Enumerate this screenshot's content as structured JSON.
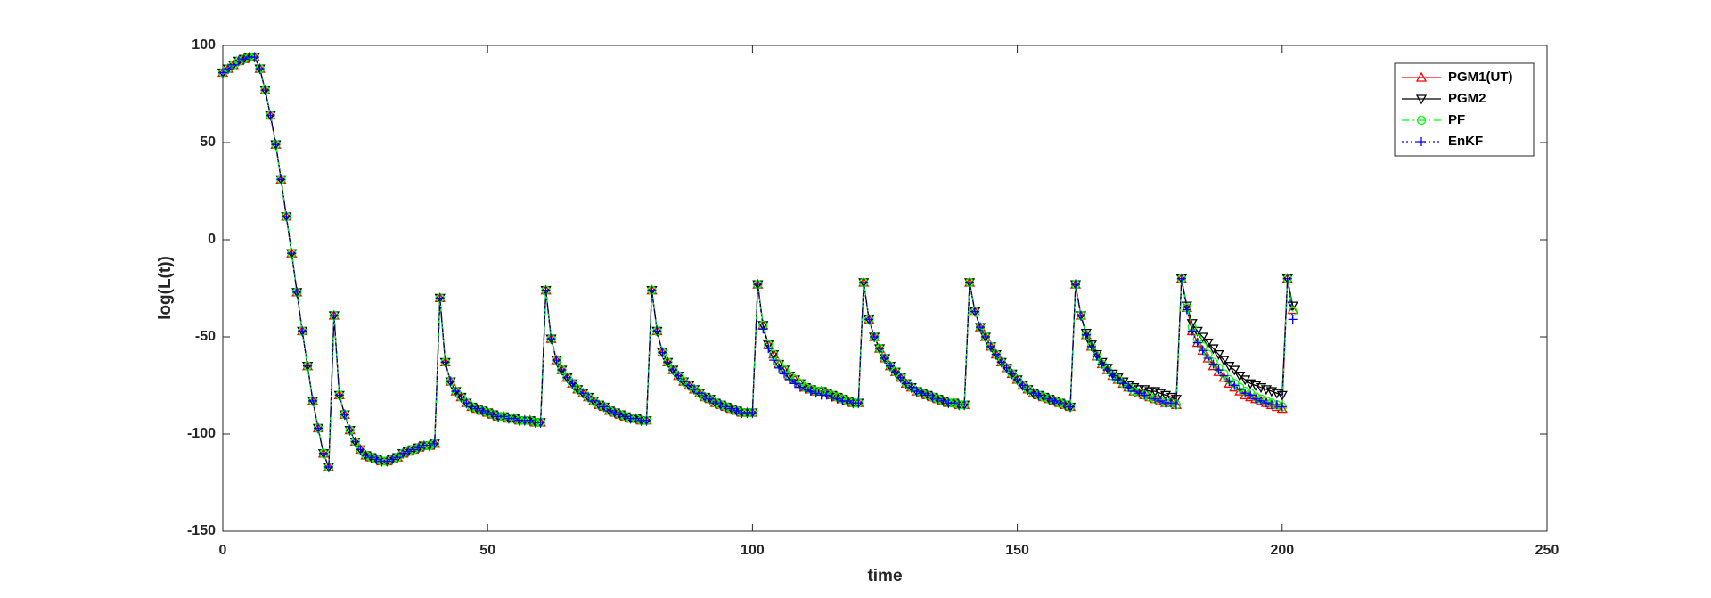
{
  "chart_data": {
    "type": "line",
    "xlabel": "time",
    "ylabel": "log(L(t))",
    "xlim": [
      0,
      250
    ],
    "ylim": [
      -150,
      100
    ],
    "xticks": [
      0,
      50,
      100,
      150,
      200,
      250
    ],
    "yticks": [
      -150,
      -100,
      -50,
      0,
      50,
      100
    ],
    "legend": "northeast",
    "x": [
      0,
      1,
      2,
      3,
      4,
      5,
      6,
      7,
      8,
      9,
      10,
      11,
      12,
      13,
      14,
      15,
      16,
      17,
      18,
      19,
      20,
      21,
      22,
      23,
      24,
      25,
      26,
      27,
      28,
      29,
      30,
      31,
      32,
      33,
      34,
      35,
      36,
      37,
      38,
      39,
      40,
      41,
      42,
      43,
      44,
      45,
      46,
      47,
      48,
      49,
      50,
      51,
      52,
      53,
      54,
      55,
      56,
      57,
      58,
      59,
      60,
      61,
      62,
      63,
      64,
      65,
      66,
      67,
      68,
      69,
      70,
      71,
      72,
      73,
      74,
      75,
      76,
      77,
      78,
      79,
      80,
      81,
      82,
      83,
      84,
      85,
      86,
      87,
      88,
      89,
      90,
      91,
      92,
      93,
      94,
      95,
      96,
      97,
      98,
      99,
      100,
      101,
      102,
      103,
      104,
      105,
      106,
      107,
      108,
      109,
      110,
      111,
      112,
      113,
      114,
      115,
      116,
      117,
      118,
      119,
      120,
      121,
      122,
      123,
      124,
      125,
      126,
      127,
      128,
      129,
      130,
      131,
      132,
      133,
      134,
      135,
      136,
      137,
      138,
      139,
      140,
      141,
      142,
      143,
      144,
      145,
      146,
      147,
      148,
      149,
      150,
      151,
      152,
      153,
      154,
      155,
      156,
      157,
      158,
      159,
      160,
      161,
      162,
      163,
      164,
      165,
      166,
      167,
      168,
      169,
      170,
      171,
      172,
      173,
      174,
      175,
      176,
      177,
      178,
      179,
      180,
      181,
      182,
      183,
      184,
      185,
      186,
      187,
      188,
      189,
      190,
      191,
      192,
      193,
      194,
      195,
      196,
      197,
      198,
      199,
      200,
      201,
      202
    ],
    "series": [
      {
        "name": "PGM1(UT)",
        "color": "#ff0000",
        "line": "solid",
        "marker": "triangle-up",
        "values": [
          86,
          88,
          90,
          92,
          93,
          94,
          94,
          88,
          77,
          64,
          49,
          31,
          12,
          -7,
          -27,
          -47,
          -65,
          -83,
          -97,
          -110,
          -117,
          -39,
          -80,
          -90,
          -98,
          -104,
          -108,
          -111,
          -112,
          -113,
          -114,
          -114,
          -113,
          -112,
          -110,
          -109,
          -108,
          -107,
          -106,
          -106,
          -105,
          -30,
          -63,
          -73,
          -78,
          -81,
          -84,
          -86,
          -87,
          -88,
          -89,
          -90,
          -91,
          -91,
          -92,
          -92,
          -93,
          -93,
          -93,
          -94,
          -94,
          -26,
          -51,
          -62,
          -67,
          -71,
          -74,
          -77,
          -79,
          -81,
          -83,
          -85,
          -86,
          -88,
          -89,
          -90,
          -91,
          -92,
          -92,
          -93,
          -93,
          -26,
          -47,
          -58,
          -63,
          -67,
          -70,
          -73,
          -75,
          -77,
          -79,
          -81,
          -82,
          -84,
          -85,
          -86,
          -87,
          -88,
          -89,
          -89,
          -89,
          -23,
          -44,
          -54,
          -59,
          -64,
          -67,
          -70,
          -72,
          -74,
          -76,
          -77,
          -78,
          -78,
          -79,
          -80,
          -81,
          -82,
          -83,
          -84,
          -84,
          -22,
          -41,
          -50,
          -56,
          -61,
          -65,
          -68,
          -71,
          -74,
          -76,
          -78,
          -79,
          -80,
          -81,
          -82,
          -83,
          -84,
          -84,
          -85,
          -85,
          -22,
          -37,
          -45,
          -50,
          -55,
          -59,
          -63,
          -66,
          -69,
          -72,
          -75,
          -77,
          -79,
          -80,
          -81,
          -82,
          -83,
          -84,
          -85,
          -86,
          -23,
          -39,
          -49,
          -55,
          -60,
          -64,
          -67,
          -70,
          -72,
          -74,
          -76,
          -78,
          -79,
          -80,
          -81,
          -82,
          -83,
          -84,
          -84,
          -85,
          -20,
          -35,
          -47,
          -53,
          -57,
          -61,
          -65,
          -68,
          -71,
          -74,
          -76,
          -78,
          -80,
          -81,
          -82,
          -83,
          -84,
          -85,
          -86,
          -87,
          -20,
          -36
        ]
      },
      {
        "name": "PGM2",
        "color": "#000000",
        "line": "solid",
        "marker": "triangle-down",
        "values": [
          86,
          88,
          90,
          92,
          93,
          94,
          94,
          88,
          77,
          64,
          49,
          31,
          12,
          -7,
          -27,
          -47,
          -65,
          -83,
          -97,
          -110,
          -117,
          -39,
          -80,
          -90,
          -98,
          -104,
          -108,
          -111,
          -112,
          -113,
          -114,
          -114,
          -113,
          -112,
          -110,
          -109,
          -108,
          -107,
          -106,
          -106,
          -105,
          -30,
          -63,
          -73,
          -78,
          -81,
          -84,
          -86,
          -87,
          -88,
          -89,
          -90,
          -91,
          -91,
          -92,
          -92,
          -93,
          -93,
          -93,
          -94,
          -94,
          -26,
          -51,
          -62,
          -67,
          -71,
          -74,
          -77,
          -79,
          -81,
          -83,
          -85,
          -86,
          -88,
          -89,
          -90,
          -91,
          -92,
          -92,
          -93,
          -93,
          -26,
          -47,
          -58,
          -63,
          -67,
          -70,
          -73,
          -75,
          -77,
          -79,
          -81,
          -82,
          -84,
          -85,
          -86,
          -87,
          -88,
          -89,
          -89,
          -89,
          -23,
          -44,
          -54,
          -59,
          -64,
          -67,
          -70,
          -72,
          -74,
          -76,
          -77,
          -78,
          -78,
          -79,
          -80,
          -81,
          -82,
          -83,
          -84,
          -84,
          -22,
          -41,
          -50,
          -56,
          -61,
          -65,
          -68,
          -71,
          -74,
          -76,
          -78,
          -79,
          -80,
          -81,
          -82,
          -83,
          -84,
          -84,
          -85,
          -85,
          -22,
          -37,
          -45,
          -50,
          -55,
          -59,
          -63,
          -66,
          -69,
          -72,
          -75,
          -77,
          -79,
          -80,
          -81,
          -82,
          -83,
          -84,
          -85,
          -86,
          -23,
          -39,
          -48,
          -54,
          -59,
          -63,
          -66,
          -69,
          -71,
          -73,
          -75,
          -76,
          -77,
          -77,
          -78,
          -78,
          -79,
          -80,
          -81,
          -82,
          -20,
          -34,
          -43,
          -47,
          -50,
          -53,
          -56,
          -59,
          -62,
          -65,
          -67,
          -70,
          -72,
          -74,
          -75,
          -76,
          -77,
          -78,
          -79,
          -80,
          -20,
          -34
        ]
      },
      {
        "name": "PF",
        "color": "#00ff00",
        "line": "dashdot",
        "marker": "circle",
        "values": [
          86,
          88,
          90,
          92,
          93,
          94,
          94,
          88,
          77,
          64,
          49,
          31,
          12,
          -7,
          -27,
          -47,
          -65,
          -83,
          -97,
          -110,
          -117,
          -39,
          -80,
          -90,
          -98,
          -104,
          -108,
          -111,
          -112,
          -113,
          -114,
          -114,
          -113,
          -112,
          -110,
          -109,
          -108,
          -107,
          -106,
          -106,
          -105,
          -30,
          -63,
          -73,
          -78,
          -81,
          -84,
          -86,
          -87,
          -88,
          -89,
          -90,
          -91,
          -91,
          -92,
          -92,
          -93,
          -93,
          -93,
          -94,
          -94,
          -26,
          -51,
          -62,
          -67,
          -71,
          -74,
          -77,
          -79,
          -81,
          -83,
          -85,
          -86,
          -88,
          -89,
          -90,
          -91,
          -92,
          -92,
          -93,
          -93,
          -26,
          -47,
          -58,
          -63,
          -67,
          -70,
          -73,
          -75,
          -77,
          -79,
          -81,
          -82,
          -84,
          -85,
          -86,
          -87,
          -88,
          -89,
          -89,
          -89,
          -23,
          -44,
          -54,
          -59,
          -64,
          -67,
          -70,
          -72,
          -74,
          -76,
          -77,
          -78,
          -78,
          -79,
          -80,
          -81,
          -82,
          -83,
          -84,
          -84,
          -22,
          -41,
          -50,
          -56,
          -61,
          -65,
          -68,
          -71,
          -74,
          -76,
          -78,
          -79,
          -80,
          -81,
          -82,
          -83,
          -84,
          -84,
          -85,
          -85,
          -22,
          -37,
          -45,
          -50,
          -55,
          -59,
          -63,
          -66,
          -69,
          -72,
          -75,
          -77,
          -79,
          -80,
          -81,
          -82,
          -83,
          -84,
          -85,
          -86,
          -23,
          -39,
          -49,
          -55,
          -60,
          -64,
          -67,
          -70,
          -72,
          -74,
          -76,
          -78,
          -79,
          -80,
          -81,
          -82,
          -83,
          -84,
          -84,
          -85,
          -20,
          -35,
          -45,
          -51,
          -55,
          -59,
          -63,
          -66,
          -69,
          -72,
          -74,
          -76,
          -78,
          -79,
          -81,
          -82,
          -83,
          -84,
          -85,
          -86,
          -20,
          -37
        ]
      },
      {
        "name": "EnKF",
        "color": "#0000ff",
        "line": "dotted",
        "marker": "plus",
        "values": [
          86,
          88,
          90,
          92,
          93,
          94,
          94,
          88,
          77,
          64,
          49,
          31,
          12,
          -7,
          -27,
          -47,
          -65,
          -83,
          -97,
          -110,
          -117,
          -39,
          -80,
          -90,
          -98,
          -104,
          -108,
          -111,
          -112,
          -113,
          -114,
          -114,
          -113,
          -112,
          -110,
          -109,
          -108,
          -107,
          -106,
          -106,
          -105,
          -30,
          -63,
          -73,
          -78,
          -81,
          -84,
          -86,
          -87,
          -88,
          -89,
          -90,
          -91,
          -91,
          -92,
          -92,
          -93,
          -93,
          -93,
          -94,
          -94,
          -26,
          -51,
          -62,
          -67,
          -71,
          -74,
          -77,
          -79,
          -81,
          -83,
          -85,
          -86,
          -88,
          -89,
          -90,
          -91,
          -92,
          -92,
          -93,
          -93,
          -26,
          -47,
          -58,
          -63,
          -67,
          -70,
          -73,
          -75,
          -77,
          -79,
          -81,
          -82,
          -84,
          -85,
          -86,
          -87,
          -88,
          -89,
          -89,
          -89,
          -23,
          -46,
          -56,
          -62,
          -66,
          -69,
          -72,
          -74,
          -76,
          -77,
          -78,
          -79,
          -80,
          -80,
          -81,
          -82,
          -83,
          -83,
          -84,
          -84,
          -22,
          -41,
          -50,
          -56,
          -61,
          -65,
          -68,
          -71,
          -74,
          -76,
          -78,
          -79,
          -80,
          -81,
          -82,
          -83,
          -84,
          -84,
          -85,
          -85,
          -22,
          -37,
          -45,
          -50,
          -55,
          -59,
          -63,
          -66,
          -69,
          -72,
          -75,
          -77,
          -79,
          -80,
          -81,
          -82,
          -83,
          -84,
          -85,
          -86,
          -23,
          -39,
          -49,
          -55,
          -60,
          -64,
          -67,
          -70,
          -72,
          -74,
          -76,
          -78,
          -79,
          -80,
          -81,
          -82,
          -83,
          -84,
          -84,
          -85,
          -20,
          -36,
          -47,
          -53,
          -57,
          -61,
          -64,
          -67,
          -70,
          -73,
          -75,
          -77,
          -79,
          -80,
          -82,
          -83,
          -84,
          -85,
          -85,
          -86,
          -20,
          -41
        ]
      }
    ]
  }
}
